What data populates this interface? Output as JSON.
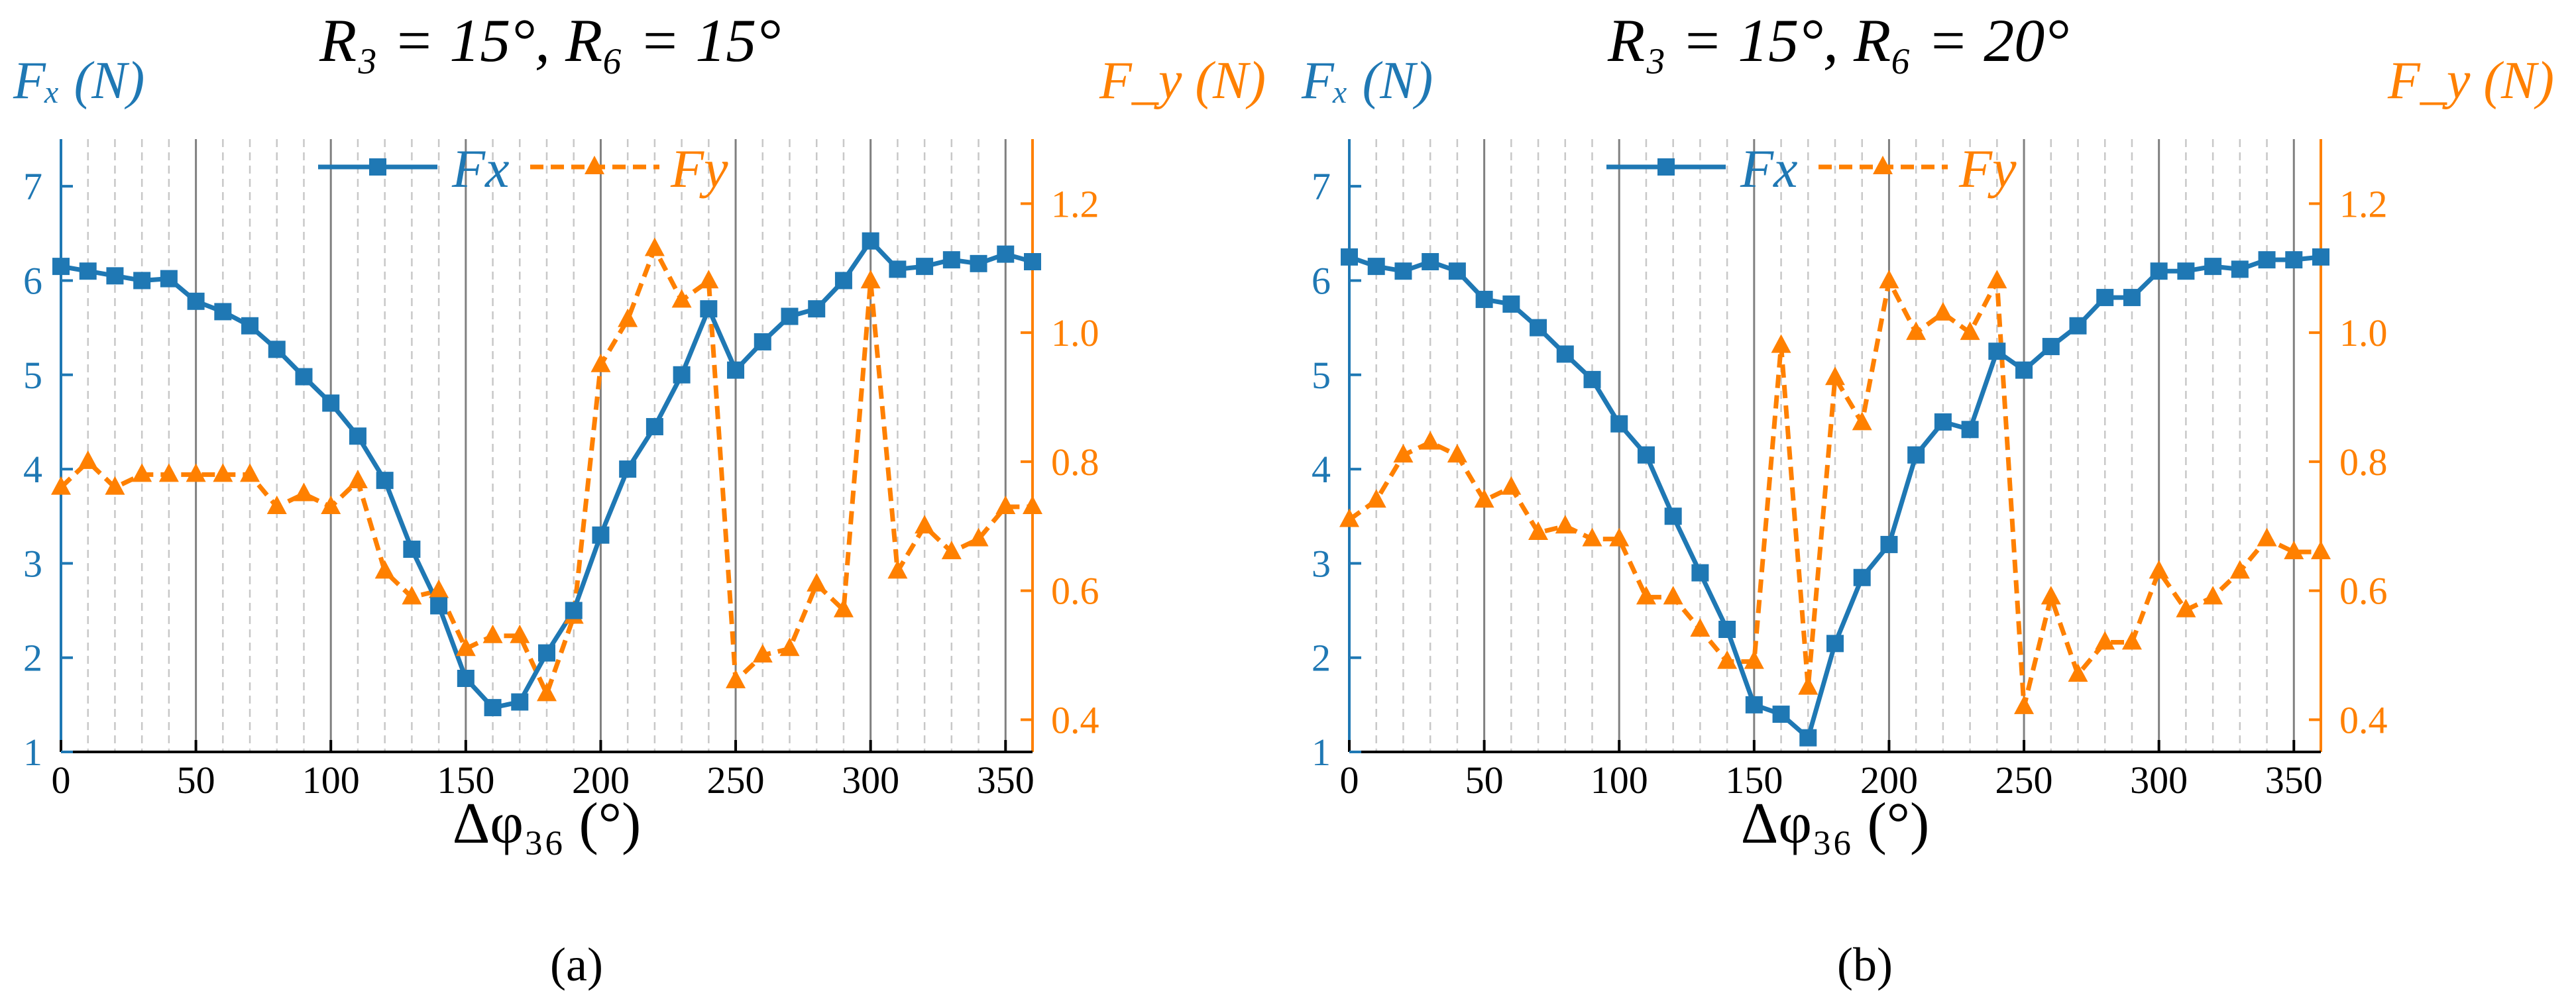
{
  "colors": {
    "fx": "#1f78b4",
    "fy": "#ff8000",
    "axis": "#000000",
    "grid_major": "#808080",
    "grid_minor": "#c8c8c8"
  },
  "chart_data": [
    {
      "type": "line",
      "panel_label": "(a)",
      "title": "R₃ = 15°, R₆ = 15°",
      "xlabel": "Δφ₃₆ (°)",
      "ylabel_left": "Fₓ (N)",
      "ylabel_right": "F_y (N)",
      "xlim": [
        0,
        360
      ],
      "ylim_left": [
        1,
        7.5
      ],
      "ylim_right": [
        0.35,
        1.3
      ],
      "xticks": [
        0,
        50,
        100,
        150,
        200,
        250,
        300,
        350
      ],
      "yticks_left": [
        1,
        2,
        3,
        4,
        5,
        6,
        7
      ],
      "yticks_right": [
        0.4,
        0.6,
        0.8,
        1.0,
        1.2
      ],
      "grid": "vertical (major solid every 50, minor dashed every 10)",
      "legend": "top-center",
      "x": [
        0,
        10,
        20,
        30,
        40,
        50,
        60,
        70,
        80,
        90,
        100,
        110,
        120,
        130,
        140,
        150,
        160,
        170,
        180,
        190,
        200,
        210,
        220,
        230,
        240,
        250,
        260,
        270,
        280,
        290,
        300,
        310,
        320,
        330,
        340,
        350,
        360
      ],
      "series": [
        {
          "name": "Fx",
          "axis": "left",
          "style": "solid",
          "marker": "square",
          "values": [
            6.15,
            6.1,
            6.05,
            6.0,
            6.02,
            5.78,
            5.67,
            5.52,
            5.27,
            4.98,
            4.7,
            4.35,
            3.88,
            3.15,
            2.55,
            1.78,
            1.47,
            1.53,
            2.05,
            2.5,
            3.3,
            4.0,
            4.45,
            5.0,
            5.7,
            5.05,
            5.35,
            5.62,
            5.7,
            6.0,
            6.42,
            6.12,
            6.15,
            6.22,
            6.18,
            6.28,
            6.2
          ]
        },
        {
          "name": "Fy",
          "axis": "right",
          "style": "dashed",
          "marker": "triangle",
          "values": [
            0.76,
            0.8,
            0.76,
            0.78,
            0.78,
            0.78,
            0.78,
            0.78,
            0.73,
            0.75,
            0.73,
            0.77,
            0.63,
            0.59,
            0.6,
            0.51,
            0.53,
            0.53,
            0.44,
            0.56,
            0.95,
            1.02,
            1.13,
            1.05,
            1.08,
            0.46,
            0.5,
            0.51,
            0.61,
            0.57,
            1.08,
            0.63,
            0.7,
            0.66,
            0.68,
            0.73,
            0.73
          ]
        }
      ]
    },
    {
      "type": "line",
      "panel_label": "(b)",
      "title": "R₃ = 15°, R₆ = 20°",
      "xlabel": "Δφ₃₆ (°)",
      "ylabel_left": "Fₓ (N)",
      "ylabel_right": "F_y (N)",
      "xlim": [
        0,
        360
      ],
      "ylim_left": [
        1,
        7.5
      ],
      "ylim_right": [
        0.35,
        1.3
      ],
      "xticks": [
        0,
        50,
        100,
        150,
        200,
        250,
        300,
        350
      ],
      "yticks_left": [
        1,
        2,
        3,
        4,
        5,
        6,
        7
      ],
      "yticks_right": [
        0.4,
        0.6,
        0.8,
        1.0,
        1.2
      ],
      "grid": "vertical (major solid every 50, minor dashed every 10)",
      "legend": "top-center",
      "x": [
        0,
        10,
        20,
        30,
        40,
        50,
        60,
        70,
        80,
        90,
        100,
        110,
        120,
        130,
        140,
        150,
        160,
        170,
        180,
        190,
        200,
        210,
        220,
        230,
        240,
        250,
        260,
        270,
        280,
        290,
        300,
        310,
        320,
        330,
        340,
        350,
        360
      ],
      "series": [
        {
          "name": "Fx",
          "axis": "left",
          "style": "solid",
          "marker": "square",
          "values": [
            6.25,
            6.15,
            6.1,
            6.2,
            6.1,
            5.8,
            5.75,
            5.5,
            5.22,
            4.95,
            4.48,
            4.15,
            3.5,
            2.9,
            2.3,
            1.5,
            1.4,
            1.15,
            2.15,
            2.85,
            3.2,
            4.15,
            4.5,
            4.42,
            5.25,
            5.05,
            5.3,
            5.52,
            5.82,
            5.82,
            6.1,
            6.1,
            6.15,
            6.12,
            6.22,
            6.22,
            6.25
          ]
        },
        {
          "name": "Fy",
          "axis": "right",
          "style": "dashed",
          "marker": "triangle",
          "values": [
            0.71,
            0.74,
            0.81,
            0.83,
            0.81,
            0.74,
            0.76,
            0.69,
            0.7,
            0.68,
            0.68,
            0.59,
            0.59,
            0.54,
            0.49,
            0.49,
            0.98,
            0.45,
            0.93,
            0.86,
            1.08,
            1.0,
            1.03,
            1.0,
            1.08,
            0.42,
            0.59,
            0.47,
            0.52,
            0.52,
            0.63,
            0.57,
            0.59,
            0.63,
            0.68,
            0.66,
            0.66
          ]
        }
      ]
    }
  ]
}
